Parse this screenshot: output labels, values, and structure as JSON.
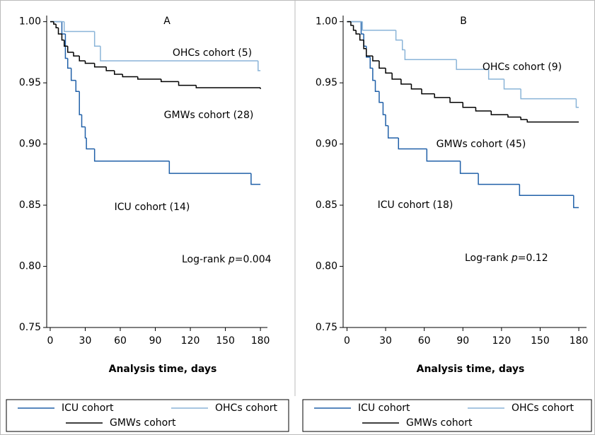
{
  "chart_data": [
    {
      "type": "line",
      "step": true,
      "title": "A",
      "xlabel": "Analysis time, days",
      "xlim": [
        -3,
        186
      ],
      "xticks": [
        0,
        30,
        60,
        90,
        120,
        150,
        180
      ],
      "ylim": [
        0.75,
        1.005
      ],
      "yticks": [
        {
          "value": 0.75,
          "label": "0.75"
        },
        {
          "value": 0.8,
          "label": "0.80"
        },
        {
          "value": 0.85,
          "label": "0.85"
        },
        {
          "value": 0.9,
          "label": "0.90"
        },
        {
          "value": 0.95,
          "label": "0.95"
        },
        {
          "value": 1,
          "label": "1.00"
        }
      ],
      "series": [
        {
          "name": "ICU cohort",
          "color": "#2060a8",
          "x": [
            0,
            10,
            13,
            15,
            18,
            22,
            25,
            27,
            30,
            31,
            38,
            102,
            172,
            180
          ],
          "values": [
            1,
            0.99,
            0.97,
            0.962,
            0.952,
            0.943,
            0.924,
            0.914,
            0.905,
            0.896,
            0.886,
            0.876,
            0.867,
            0.867
          ]
        },
        {
          "name": "OHCs cohort",
          "color": "#8ab4d8",
          "x": [
            0,
            12,
            38,
            43,
            178,
            180
          ],
          "values": [
            1,
            0.992,
            0.98,
            0.968,
            0.96,
            0.96
          ]
        },
        {
          "name": "GMWs cohort",
          "color": "#000000",
          "x": [
            0,
            3,
            5,
            7,
            10,
            12,
            15,
            20,
            25,
            30,
            38,
            48,
            55,
            62,
            75,
            95,
            110,
            125,
            180
          ],
          "values": [
            1,
            0.998,
            0.995,
            0.99,
            0.985,
            0.98,
            0.975,
            0.972,
            0.968,
            0.966,
            0.963,
            0.96,
            0.957,
            0.955,
            0.953,
            0.951,
            0.948,
            0.946,
            0.945
          ]
        }
      ],
      "annotations": [
        "OHCs cohort (5)",
        "GMWs cohort (28)",
        "ICU cohort (14)"
      ],
      "logrank": [
        "Log-rank ",
        "p",
        "=0.004"
      ]
    },
    {
      "type": "line",
      "step": true,
      "title": "B",
      "xlabel": "Analysis time, days",
      "xlim": [
        -3,
        186
      ],
      "xticks": [
        0,
        30,
        60,
        90,
        120,
        150,
        180
      ],
      "ylim": [
        0.75,
        1.005
      ],
      "yticks": [
        {
          "value": 0.75,
          "label": "0.75"
        },
        {
          "value": 0.8,
          "label": "0.80"
        },
        {
          "value": 0.85,
          "label": "0.85"
        },
        {
          "value": 0.9,
          "label": "0.90"
        },
        {
          "value": 0.95,
          "label": "0.95"
        },
        {
          "value": 1,
          "label": "1.00"
        }
      ],
      "series": [
        {
          "name": "ICU cohort",
          "color": "#2060a8",
          "x": [
            0,
            11,
            13,
            15,
            18,
            20,
            22,
            25,
            28,
            30,
            32,
            40,
            62,
            88,
            102,
            134,
            176,
            180
          ],
          "values": [
            1,
            0.99,
            0.98,
            0.971,
            0.962,
            0.952,
            0.943,
            0.934,
            0.924,
            0.915,
            0.905,
            0.896,
            0.886,
            0.876,
            0.867,
            0.858,
            0.848,
            0.848
          ]
        },
        {
          "name": "OHCs cohort",
          "color": "#8ab4d8",
          "x": [
            0,
            12,
            38,
            43,
            45,
            85,
            110,
            122,
            135,
            178,
            180
          ],
          "values": [
            1,
            0.993,
            0.985,
            0.977,
            0.969,
            0.961,
            0.953,
            0.945,
            0.937,
            0.93,
            0.93
          ]
        },
        {
          "name": "GMWs cohort",
          "color": "#000000",
          "x": [
            0,
            3,
            5,
            7,
            10,
            13,
            15,
            20,
            25,
            30,
            35,
            42,
            50,
            58,
            68,
            80,
            90,
            100,
            112,
            125,
            135,
            140,
            180
          ],
          "values": [
            1,
            0.997,
            0.993,
            0.99,
            0.985,
            0.978,
            0.972,
            0.968,
            0.962,
            0.958,
            0.953,
            0.949,
            0.945,
            0.941,
            0.938,
            0.934,
            0.93,
            0.927,
            0.924,
            0.922,
            0.92,
            0.918,
            0.918
          ]
        }
      ],
      "annotations": [
        "OHCs cohort (9)",
        "GMWs cohort (45)",
        "ICU cohort (18)"
      ],
      "logrank": [
        "Log-rank ",
        "p",
        "=0.12"
      ]
    }
  ]
}
